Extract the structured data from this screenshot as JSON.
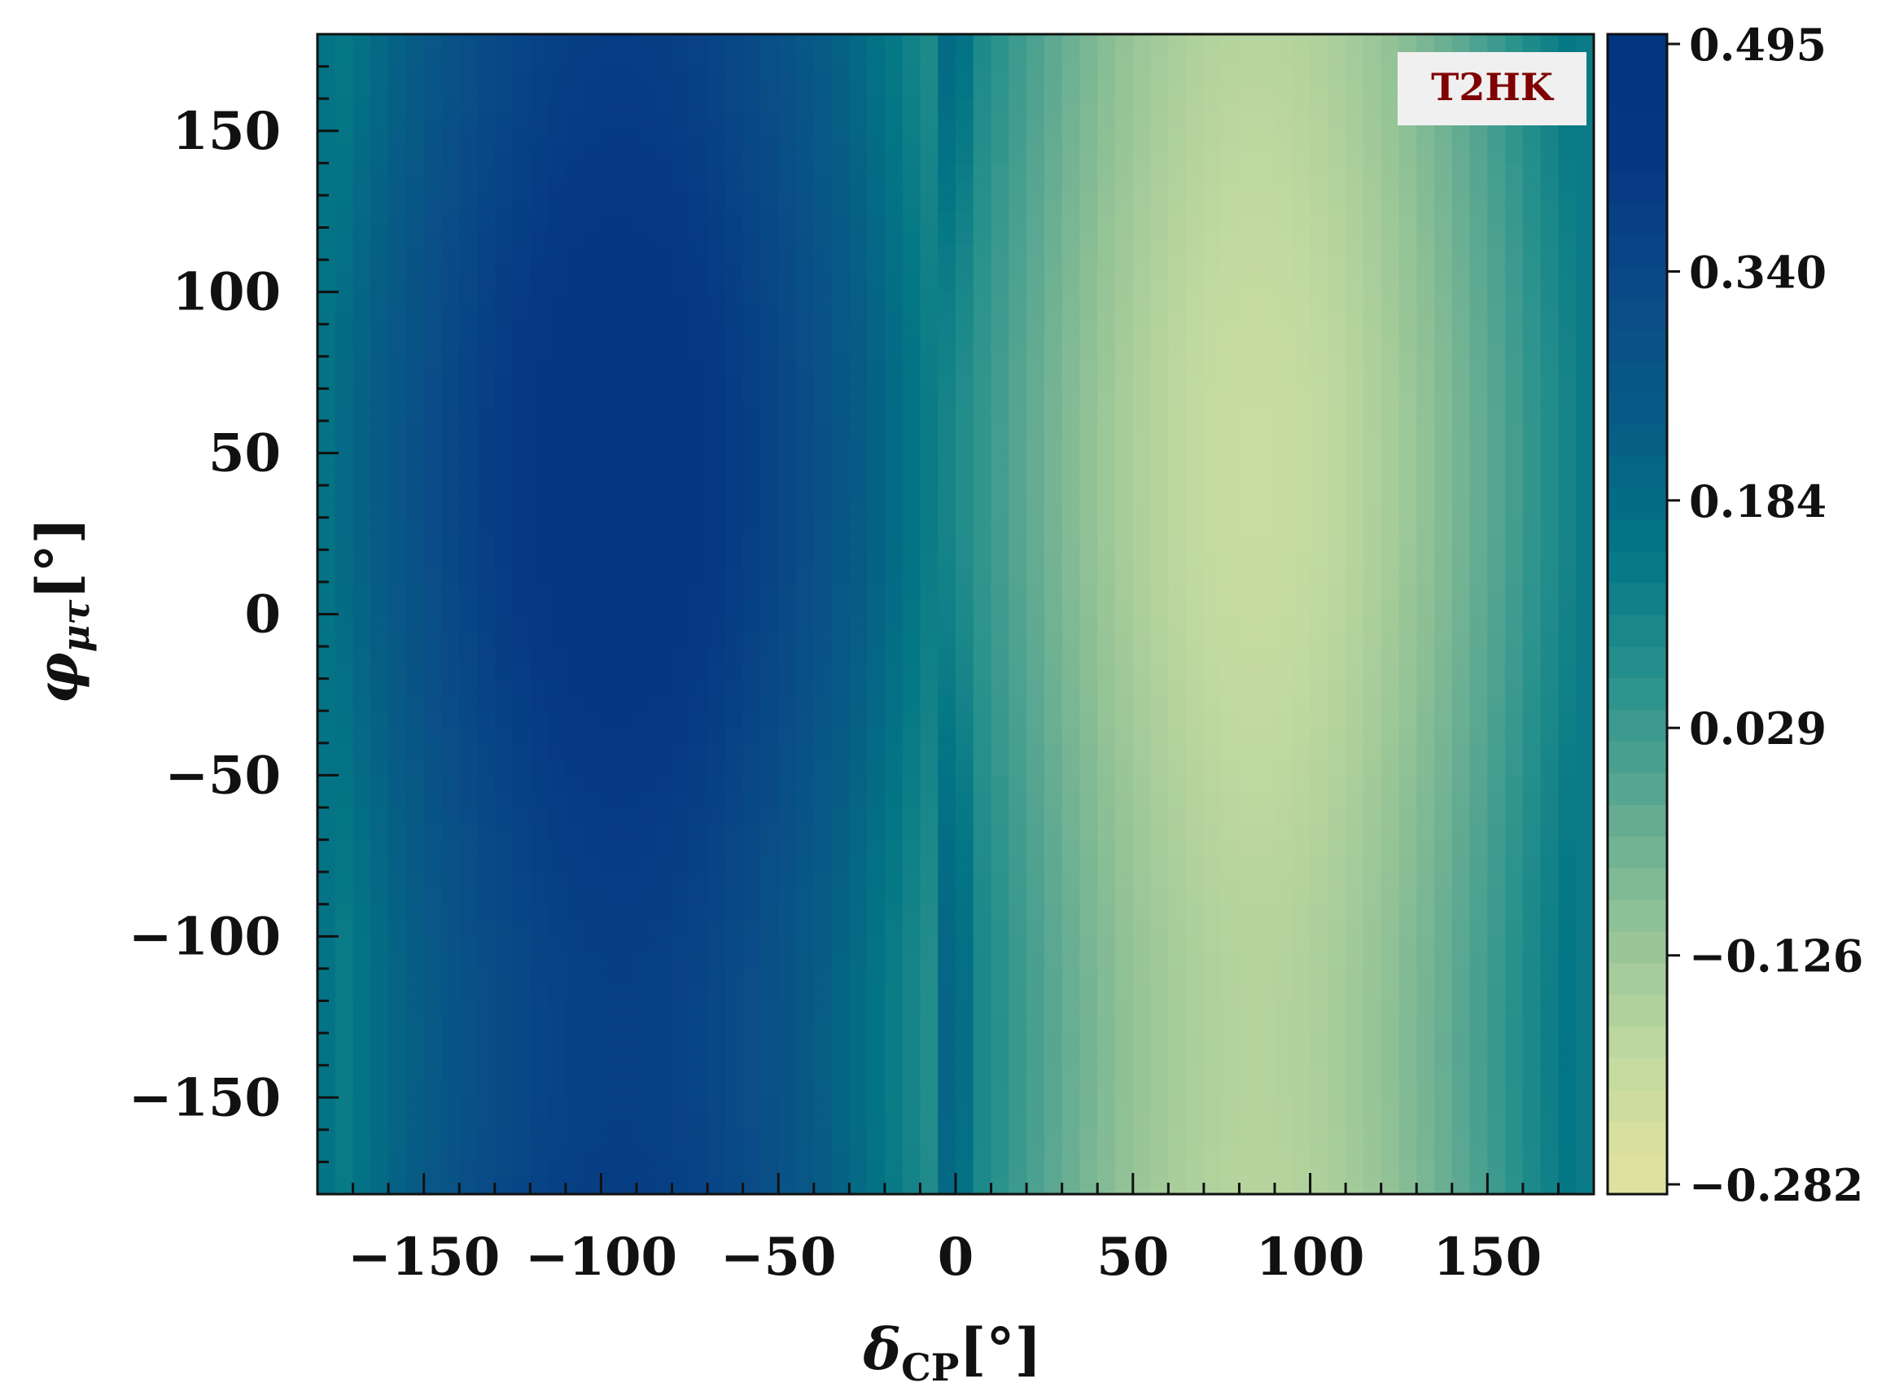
{
  "chart_data": {
    "type": "heatmap",
    "title": "",
    "annotation": "T2HK",
    "annotation_color": "#7f0000",
    "annotation_box_color": "#f0f0f0",
    "xlabel_main": "δ",
    "xlabel_sub": "CP",
    "xlabel_unit": "[°]",
    "ylabel_main": "φ",
    "ylabel_sub": "μτ",
    "ylabel_unit": "[°]",
    "xlim": [
      -180,
      180
    ],
    "ylim": [
      -180,
      180
    ],
    "x_ticks": [
      -150,
      -100,
      -50,
      0,
      50,
      100,
      150
    ],
    "x_tick_labels": [
      "−150",
      "−100",
      "−50",
      "0",
      "50",
      "100",
      "150"
    ],
    "y_ticks": [
      150,
      100,
      50,
      0,
      -50,
      -100,
      -150
    ],
    "y_tick_labels": [
      "150",
      "100",
      "50",
      "0",
      "−50",
      "−100",
      "−150"
    ],
    "colorbar": {
      "range": [
        -0.282,
        0.495
      ],
      "ticks": [
        0.495,
        0.34,
        0.184,
        0.029,
        -0.126,
        -0.282
      ],
      "tick_labels": [
        "0.495",
        "0.340",
        "0.184",
        "0.029",
        "−0.126",
        "−0.282"
      ],
      "colormap": [
        "#e3e39e",
        "#c2daa0",
        "#94c396",
        "#5ea992",
        "#28918c",
        "#037685",
        "#075c85",
        "#0a4b87",
        "#053983",
        "#003480"
      ]
    },
    "model": {
      "description": "value approx -0.2 + 0.66*sin^2((dCP - 85)/2) at phi≈45; minimum -0.282 near (dCP 85, phi 45); maximum 0.495 near (dCP -85, phi -135)",
      "samples": [
        {
          "x": 85,
          "y": 45,
          "z": -0.282
        },
        {
          "x": -85,
          "y": -135,
          "z": 0.495
        },
        {
          "x": -85,
          "y": 160,
          "z": 0.44
        },
        {
          "x": 0,
          "y": 45,
          "z": 0.18
        },
        {
          "x": 180,
          "y": 45,
          "z": 0.16
        },
        {
          "x": 85,
          "y": -135,
          "z": -0.05
        }
      ]
    },
    "grid": false,
    "legend": "none"
  }
}
